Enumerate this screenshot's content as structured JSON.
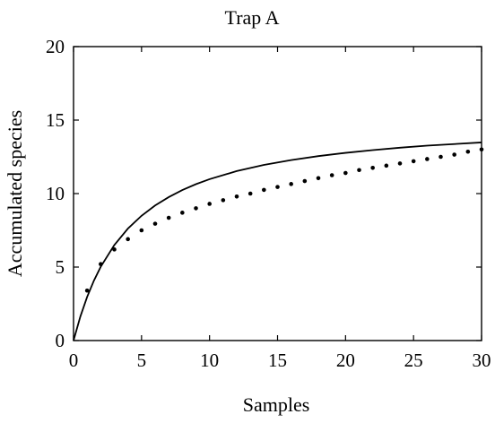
{
  "chart_data": {
    "type": "scatter",
    "title": "Trap A",
    "xlabel": "Samples",
    "ylabel": "Accumulated species",
    "xlim": [
      0,
      30
    ],
    "ylim": [
      0,
      20
    ],
    "xticks": [
      0,
      5,
      10,
      15,
      20,
      25,
      30
    ],
    "yticks": [
      0,
      5,
      10,
      15,
      20
    ],
    "grid": false,
    "series": [
      {
        "style": "dots",
        "color": "#000000",
        "x": [
          1,
          2,
          3,
          4,
          5,
          6,
          7,
          8,
          9,
          10,
          11,
          12,
          13,
          14,
          15,
          16,
          17,
          18,
          19,
          20,
          21,
          22,
          23,
          24,
          25,
          26,
          27,
          28,
          29,
          30
        ],
        "y": [
          3.4,
          5.2,
          6.2,
          6.9,
          7.5,
          7.95,
          8.35,
          8.7,
          9.0,
          9.3,
          9.55,
          9.8,
          10.0,
          10.25,
          10.45,
          10.65,
          10.85,
          11.05,
          11.25,
          11.4,
          11.6,
          11.75,
          11.9,
          12.05,
          12.2,
          12.35,
          12.5,
          12.65,
          12.85,
          13.0
        ]
      },
      {
        "style": "line",
        "color": "#000000",
        "x": [
          0,
          0.5,
          1,
          1.5,
          2,
          3,
          4,
          5,
          6,
          7,
          8,
          9,
          10,
          12,
          14,
          16,
          18,
          20,
          22,
          24,
          26,
          28,
          30
        ],
        "y": [
          0,
          1.63,
          2.97,
          4.08,
          5.02,
          6.5,
          7.62,
          8.49,
          9.19,
          9.76,
          10.24,
          10.64,
          10.98,
          11.53,
          11.95,
          12.28,
          12.55,
          12.77,
          12.96,
          13.12,
          13.26,
          13.37,
          13.48
        ]
      }
    ]
  }
}
